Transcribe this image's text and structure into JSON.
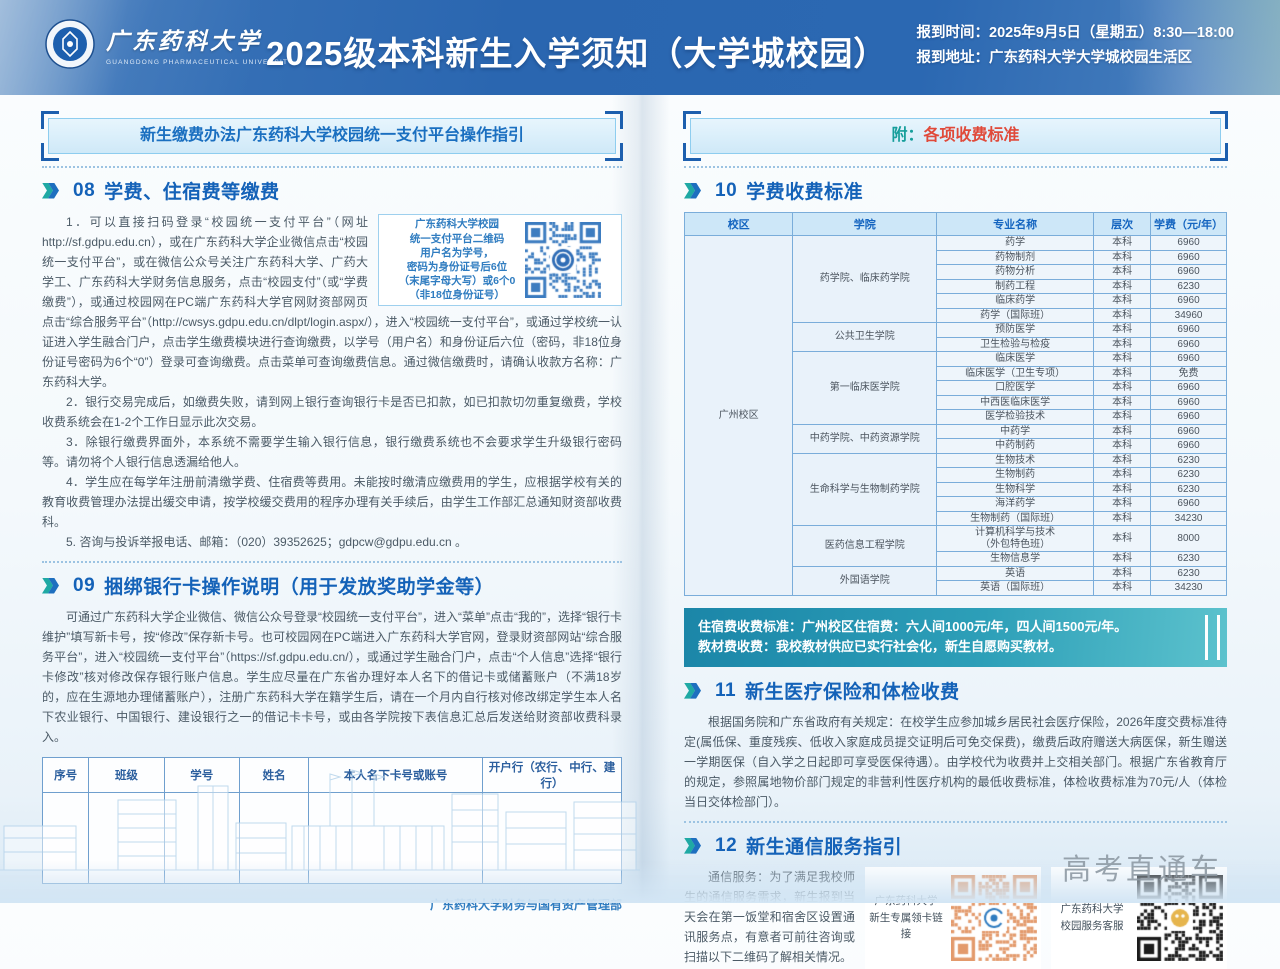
{
  "header": {
    "logo_cn": "广东药科大学",
    "logo_en": "GUANGDONG PHARMACEUTICAL UNIVERSITY",
    "title": "2025级本科新生入学须知（大学城校园）",
    "report_time": "报到时间：2025年9月5日（星期五）8:30—18:00",
    "report_address": "报到地址：广东药科大学大学城校园生活区"
  },
  "left_page": {
    "banner": "新生缴费办法广东药科大学校园统一支付平台操作指引",
    "section08": {
      "num": "08",
      "title": "学费、住宿费等缴费",
      "qr_note_lines": [
        "广东药科大学校园",
        "统一支付平台二维码",
        "用户名为学号，",
        "密码为身份证号后6位",
        "（末尾字母大写）或6个0",
        "（非18位身份证号）"
      ],
      "paragraphs": [
        "1．可以直接扫码登录“校园统一支付平台”（网址http://sf.gdpu.edu.cn），或在广东药科大学企业微信点击“校园统一支付平台”，或在微信公众号关注广东药科大学、广药大学工、广东药科大学财务信息服务，点击“校园支付”（或“学费缴费”），或通过校园网在PC端广东药科大学官网财资部网页点击“综合服务平台”（http://cwsys.gdpu.edu.cn/dlpt/login.aspx/），进入“校园统一支付平台”，或通过学校统一认证进入学生融合门户，点击学生缴费模块进行查询缴费，以学号（用户名）和身份证后六位（密码，非18位身份证号密码为6个“0”）登录可查询缴费。点击菜单可查询缴费信息。通过微信缴费时，请确认收款方名称：广东药科大学。",
        "2．银行交易完成后，如缴费失败，请到网上银行查询银行卡是否已扣款，如已扣款切勿重复缴费，学校收费系统会在1-2个工作日显示此次交易。",
        "3．除银行缴费界面外，本系统不需要学生输入银行信息，银行缴费系统也不会要求学生升级银行密码等。请勿将个人银行信息透漏给他人。",
        "4．学生应在每学年注册前清缴学费、住宿费等费用。未能按时缴清应缴费用的学生，应根据学校有关的教育收费管理办法提出缓交申请，按学校缓交费用的程序办理有关手续后，由学生工作部汇总通知财资部收费科。",
        "5. 咨询与投诉举报电话、邮箱：（020）39352625；gdpcw@gdpu.edu.cn 。"
      ]
    },
    "section09": {
      "num": "09",
      "title": "捆绑银行卡操作说明（用于发放奖助学金等）",
      "paragraph": "可通过广东药科大学企业微信、微信公众号登录“校园统一支付平台”，进入“菜单”点击“我的”，选择“银行卡维护”填写新卡号，按“修改”保存新卡号。也可校园网在PC端进入广东药科大学官网，登录财资部网站“综合服务平台”，进入“校园统一支付平台”（https://sf.gdpu.edu.cn/），或通过学生融合门户，点击“个人信息”选择“银行卡修改”核对修改保存银行账户信息。学生应尽量在广东省办理好本人名下的借记卡或储蓄账户（不满18岁的，应在生源地办理储蓄账户），注册广东药科大学在籍学生后，请在一个月内自行核对修改绑定学生本人名下农业银行、中国银行、建设银行之一的借记卡卡号，或由各学院按下表信息汇总后发送给财资部收费科录入。",
      "bank_table_headers": [
        "序号",
        "班级",
        "学号",
        "姓名",
        "本人名下卡号或账号",
        "开户行（农行、中行、建行）"
      ],
      "signature": "广东药科大学财务与国有资产管理部"
    }
  },
  "right_page": {
    "banner_prefix": "附：",
    "banner_text": "各项收费标准",
    "section10": {
      "num": "10",
      "title": "学费收费标准",
      "table": {
        "headers": [
          "校区",
          "学院",
          "专业名称",
          "层次",
          "学费（元/年）"
        ],
        "campus": "广州校区",
        "groups": [
          {
            "college": "药学院、临床药学院",
            "rows": [
              [
                "药学",
                "本科",
                "6960"
              ],
              [
                "药物制剂",
                "本科",
                "6960"
              ],
              [
                "药物分析",
                "本科",
                "6960"
              ],
              [
                "制药工程",
                "本科",
                "6230"
              ],
              [
                "临床药学",
                "本科",
                "6960"
              ],
              [
                "药学（国际班）",
                "本科",
                "34960"
              ]
            ]
          },
          {
            "college": "公共卫生学院",
            "rows": [
              [
                "预防医学",
                "本科",
                "6960"
              ],
              [
                "卫生检验与检疫",
                "本科",
                "6960"
              ]
            ]
          },
          {
            "college": "第一临床医学院",
            "rows": [
              [
                "临床医学",
                "本科",
                "6960"
              ],
              [
                "临床医学（卫生专项）",
                "本科",
                "免费"
              ],
              [
                "口腔医学",
                "本科",
                "6960"
              ],
              [
                "中西医临床医学",
                "本科",
                "6960"
              ],
              [
                "医学检验技术",
                "本科",
                "6960"
              ]
            ]
          },
          {
            "college": "中药学院、中药资源学院",
            "rows": [
              [
                "中药学",
                "本科",
                "6960"
              ],
              [
                "中药制药",
                "本科",
                "6960"
              ]
            ]
          },
          {
            "college": "生命科学与生物制药学院",
            "rows": [
              [
                "生物技术",
                "本科",
                "6230"
              ],
              [
                "生物制药",
                "本科",
                "6230"
              ],
              [
                "生物科学",
                "本科",
                "6230"
              ],
              [
                "海洋药学",
                "本科",
                "6960"
              ],
              [
                "生物制药（国际班）",
                "本科",
                "34230"
              ]
            ]
          },
          {
            "college": "医药信息工程学院",
            "rows": [
              [
                "计算机科学与技术\n（外包特色班）",
                "本科",
                "8000"
              ],
              [
                "生物信息学",
                "本科",
                "6230"
              ]
            ]
          },
          {
            "college": "外国语学院",
            "rows": [
              [
                "英语",
                "本科",
                "6230"
              ],
              [
                "英语（国际班）",
                "本科",
                "34230"
              ]
            ]
          }
        ]
      }
    },
    "notice_lines": [
      "住宿费收费标准：广州校区住宿费：六人间1000元/年，四人间1500元/年。",
      "教材费收费：我校教材供应已实行社会化，新生自愿购买教材。"
    ],
    "section11": {
      "num": "11",
      "title": "新生医疗保险和体检收费",
      "paragraph": "根据国务院和广东省政府有关规定：在校学生应参加城乡居民社会医疗保险，2026年度交费标准待定(属低保、重度残疾、低收入家庭成员提交证明后可免交保费)，缴费后政府赠送大病医保，新生赠送一学期医保（自入学之日起即可享受医保待遇）。由学校代为收费并上交相关部门。根据广东省教育厅的规定，参照属地物价部门规定的非营利性医疗机构的最低收费标准，体检收费标准为70元/人（体检当日交体检部门）。"
    },
    "section12": {
      "num": "12",
      "title": "新生通信服务指引",
      "paragraph": "通信服务：为了满足我校师生的通信服务需求，新生报到当天会在第一饭堂和宿舍区设置通讯服务点，有意者可前往咨询或扫描以下二维码了解相关情况。",
      "qr_panels": [
        {
          "label_lines": [
            "广东药科大学",
            "新生专属领卡链接"
          ],
          "qr_color": "#e39a6c",
          "logo": "cmcc"
        },
        {
          "label_lines": [
            "广东药科大学",
            "校园服务客服"
          ],
          "qr_color": "#1c1c1c",
          "logo": "service"
        }
      ]
    }
  },
  "watermark": "高考直通车",
  "colors": {
    "header_blue": "#2a66b0",
    "section_blue": "#1462b8",
    "chevron_teal": "#1fa9a4",
    "banner_prefix_teal": "#169e9b",
    "banner_red": "#e04a3a",
    "notice_teal": "#2d9fb8",
    "payment_qr_blue": "#3c7cc0",
    "table_border_blue": "#7aadda",
    "watermark_gray": "#8e9aa4"
  }
}
